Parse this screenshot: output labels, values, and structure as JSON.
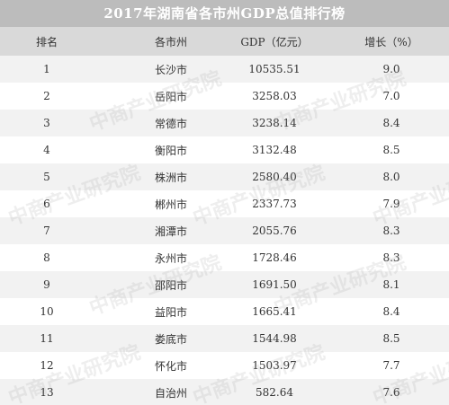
{
  "chart_data": {
    "type": "table",
    "title": "2017年湖南省各市州GDP总值排行榜",
    "columns": [
      "排名",
      "各市州",
      "GDP（亿元）",
      "增长（%）"
    ],
    "rows": [
      {
        "rank": "1",
        "city": "长沙市",
        "gdp": "10535.51",
        "growth": "9.0"
      },
      {
        "rank": "2",
        "city": "岳阳市",
        "gdp": "3258.03",
        "growth": "7.0"
      },
      {
        "rank": "3",
        "city": "常德市",
        "gdp": "3238.14",
        "growth": "8.4"
      },
      {
        "rank": "4",
        "city": "衡阳市",
        "gdp": "3132.48",
        "growth": "8.5"
      },
      {
        "rank": "5",
        "city": "株洲市",
        "gdp": "2580.40",
        "growth": "8.0"
      },
      {
        "rank": "6",
        "city": "郴州市",
        "gdp": "2337.73",
        "growth": "7.9"
      },
      {
        "rank": "7",
        "city": "湘潭市",
        "gdp": "2055.76",
        "growth": "8.3"
      },
      {
        "rank": "8",
        "city": "永州市",
        "gdp": "1728.46",
        "growth": "8.3"
      },
      {
        "rank": "9",
        "city": "邵阳市",
        "gdp": "1691.50",
        "growth": "8.1"
      },
      {
        "rank": "10",
        "city": "益阳市",
        "gdp": "1665.41",
        "growth": "8.4"
      },
      {
        "rank": "11",
        "city": "娄底市",
        "gdp": "1544.98",
        "growth": "8.5"
      },
      {
        "rank": "12",
        "city": "怀化市",
        "gdp": "1503.97",
        "growth": "7.7"
      },
      {
        "rank": "13",
        "city": "自治州",
        "gdp": "582.64",
        "growth": "7.6"
      }
    ]
  },
  "watermark": "中商产业研究院",
  "colors": {
    "title_bg": "#bcbcbc",
    "header_bg": "#d9d9d9",
    "row_alt_bg": "#f2f2f2",
    "text": "#333333"
  }
}
